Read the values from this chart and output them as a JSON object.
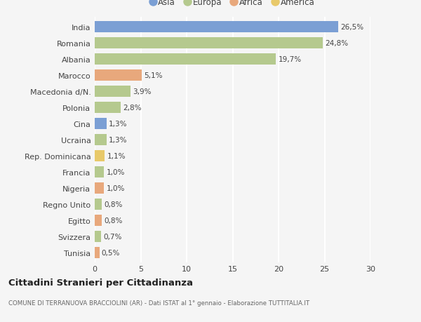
{
  "countries": [
    "India",
    "Romania",
    "Albania",
    "Marocco",
    "Macedonia d/N.",
    "Polonia",
    "Cina",
    "Ucraina",
    "Rep. Dominicana",
    "Francia",
    "Nigeria",
    "Regno Unito",
    "Egitto",
    "Svizzera",
    "Tunisia"
  ],
  "values": [
    26.5,
    24.8,
    19.7,
    5.1,
    3.9,
    2.8,
    1.3,
    1.3,
    1.1,
    1.0,
    1.0,
    0.8,
    0.8,
    0.7,
    0.5
  ],
  "labels": [
    "26,5%",
    "24,8%",
    "19,7%",
    "5,1%",
    "3,9%",
    "2,8%",
    "1,3%",
    "1,3%",
    "1,1%",
    "1,0%",
    "1,0%",
    "0,8%",
    "0,8%",
    "0,7%",
    "0,5%"
  ],
  "continents": [
    "Asia",
    "Europa",
    "Europa",
    "Africa",
    "Europa",
    "Europa",
    "Asia",
    "Europa",
    "America",
    "Europa",
    "Africa",
    "Europa",
    "Africa",
    "Europa",
    "Africa"
  ],
  "continent_colors": {
    "Asia": "#7b9fd4",
    "Europa": "#b5c98e",
    "Africa": "#e8a87c",
    "America": "#e8c96a"
  },
  "legend_order": [
    "Asia",
    "Europa",
    "Africa",
    "America"
  ],
  "title": "Cittadini Stranieri per Cittadinanza",
  "subtitle": "COMUNE DI TERRANUOVA BRACCIOLINI (AR) - Dati ISTAT al 1° gennaio - Elaborazione TUTTITALIA.IT",
  "xlim": [
    0,
    30
  ],
  "xticks": [
    0,
    5,
    10,
    15,
    20,
    25,
    30
  ],
  "bg_color": "#f5f5f5",
  "grid_color": "#ffffff",
  "bar_height": 0.68
}
